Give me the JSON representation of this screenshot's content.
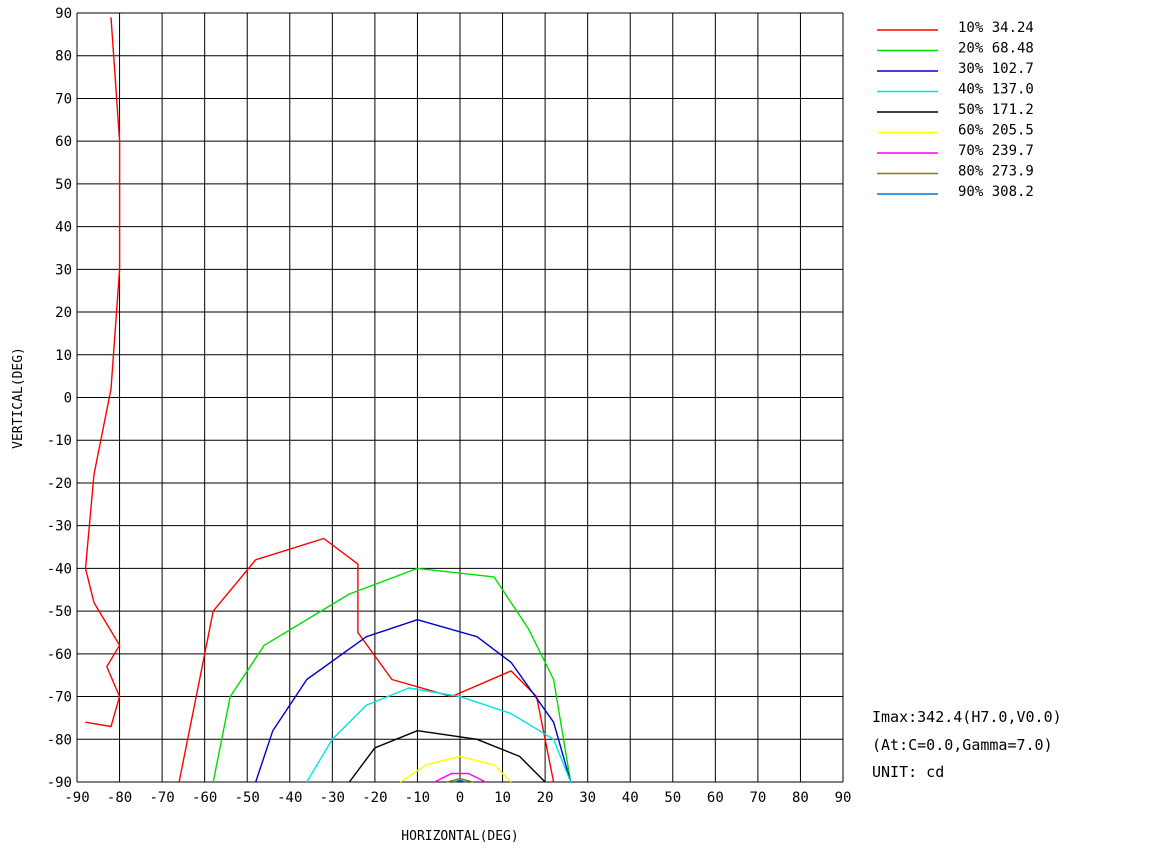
{
  "chart_data": {
    "type": "contour",
    "title": "",
    "xlabel": "HORIZONTAL(DEG)",
    "ylabel": "VERTICAL(DEG)",
    "xlim": [
      -90,
      90
    ],
    "ylim": [
      -90,
      90
    ],
    "x_ticks": [
      "-90",
      "-80",
      "-70",
      "-60",
      "-50",
      "-40",
      "-30",
      "-20",
      "-10",
      "0",
      "10",
      "20",
      "30",
      "40",
      "50",
      "60",
      "70",
      "80",
      "90"
    ],
    "y_ticks": [
      "90",
      "80",
      "70",
      "60",
      "50",
      "40",
      "30",
      "20",
      "10",
      "0",
      "-10",
      "-20",
      "-30",
      "-40",
      "-50",
      "-60",
      "-70",
      "-80",
      "-90"
    ],
    "grid": true,
    "legend_position": "top-right",
    "series": [
      {
        "name": "10% 34.24",
        "color": "#ff0000",
        "polylines": [
          [
            [
              -88,
              -76
            ],
            [
              -82,
              -77
            ],
            [
              -80,
              -70
            ],
            [
              -83,
              -63
            ],
            [
              -80,
              -58
            ],
            [
              -86,
              -48
            ],
            [
              -88,
              -40
            ],
            [
              -86,
              -18
            ],
            [
              -82,
              2
            ],
            [
              -80,
              30
            ],
            [
              -80,
              60
            ],
            [
              -82,
              89
            ]
          ],
          [
            [
              -66,
              -90
            ],
            [
              -62,
              -70
            ],
            [
              -58,
              -50
            ],
            [
              -48,
              -38
            ],
            [
              -32,
              -33
            ],
            [
              -24,
              -39
            ],
            [
              -24,
              -55
            ],
            [
              -16,
              -66
            ],
            [
              -2,
              -70
            ],
            [
              12,
              -64
            ],
            [
              18,
              -70
            ],
            [
              22,
              -90
            ]
          ]
        ]
      },
      {
        "name": "20% 68.48",
        "color": "#00dd00",
        "polylines": [
          [
            [
              -58,
              -90
            ],
            [
              -54,
              -70
            ],
            [
              -46,
              -58
            ],
            [
              -26,
              -46
            ],
            [
              -10,
              -40
            ],
            [
              8,
              -42
            ],
            [
              16,
              -54
            ],
            [
              22,
              -66
            ],
            [
              26,
              -90
            ]
          ]
        ]
      },
      {
        "name": "30% 102.7",
        "color": "#0000cc",
        "polylines": [
          [
            [
              -48,
              -90
            ],
            [
              -44,
              -78
            ],
            [
              -36,
              -66
            ],
            [
              -22,
              -56
            ],
            [
              -10,
              -52
            ],
            [
              4,
              -56
            ],
            [
              12,
              -62
            ],
            [
              22,
              -76
            ],
            [
              26,
              -90
            ]
          ]
        ]
      },
      {
        "name": "40% 137.0",
        "color": "#00e5e5",
        "polylines": [
          [
            [
              -36,
              -90
            ],
            [
              -30,
              -80
            ],
            [
              -22,
              -72
            ],
            [
              -12,
              -68
            ],
            [
              0,
              -70
            ],
            [
              12,
              -74
            ],
            [
              22,
              -80
            ],
            [
              26,
              -90
            ]
          ]
        ]
      },
      {
        "name": "50% 171.2",
        "color": "#000000",
        "polylines": [
          [
            [
              -26,
              -90
            ],
            [
              -20,
              -82
            ],
            [
              -10,
              -78
            ],
            [
              4,
              -80
            ],
            [
              14,
              -84
            ],
            [
              20,
              -90
            ]
          ]
        ]
      },
      {
        "name": "60% 205.5",
        "color": "#ffff00",
        "polylines": [
          [
            [
              -14,
              -90
            ],
            [
              -8,
              -86
            ],
            [
              0,
              -84
            ],
            [
              8,
              -86
            ],
            [
              12,
              -90
            ]
          ]
        ]
      },
      {
        "name": "70% 239.7",
        "color": "#ff00ff",
        "polylines": [
          [
            [
              -6,
              -90
            ],
            [
              -2,
              -88
            ],
            [
              2,
              -88
            ],
            [
              6,
              -90
            ]
          ]
        ]
      },
      {
        "name": "80% 273.9",
        "color": "#808000",
        "polylines": [
          [
            [
              -3,
              -90
            ],
            [
              0,
              -89.2
            ],
            [
              3,
              -90
            ]
          ]
        ]
      },
      {
        "name": "90% 308.2",
        "color": "#0077dd",
        "polylines": [
          [
            [
              -1.5,
              -90
            ],
            [
              0,
              -89.6
            ],
            [
              1.5,
              -90
            ]
          ]
        ]
      }
    ]
  },
  "info": {
    "imax": "Imax:342.4(H7.0,V0.0)",
    "at": "(At:C=0.0,Gamma=7.0)",
    "unit": "UNIT: cd"
  }
}
